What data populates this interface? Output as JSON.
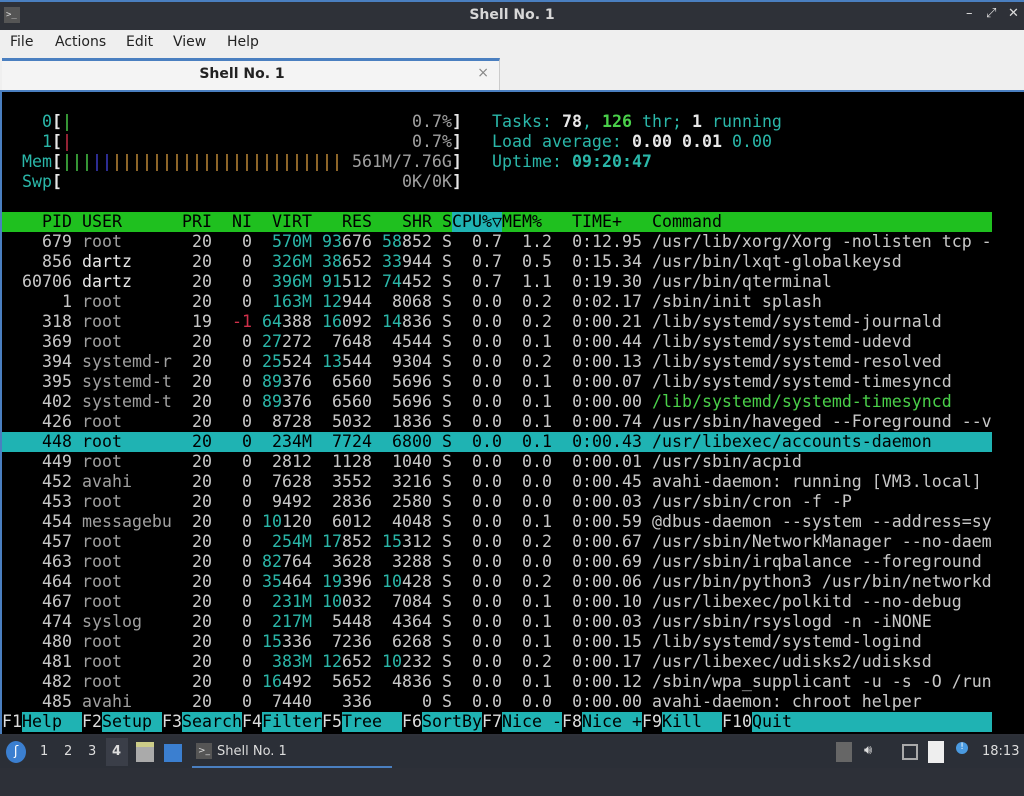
{
  "window": {
    "title": "Shell No. 1",
    "app_icon": "terminal-icon",
    "controls": [
      "minimize",
      "maximize",
      "close"
    ]
  },
  "menu": [
    "File",
    "Actions",
    "Edit",
    "View",
    "Help"
  ],
  "tab": {
    "label": "Shell No. 1",
    "close": "×"
  },
  "meters": {
    "cpu0": {
      "label": "0",
      "value": "0.7%"
    },
    "cpu1": {
      "label": "1",
      "value": "0.7%"
    },
    "mem": {
      "label": "Mem",
      "value": "561M/7.76G",
      "bars": {
        "used": 3,
        "buffers": 2,
        "cache": 23
      }
    },
    "swp": {
      "label": "Swp",
      "value": "0K/0K"
    }
  },
  "summary": {
    "tasks_label": "Tasks: ",
    "tasks": "78",
    "thr": "126",
    "thr_label": " thr; ",
    "running": "1",
    "running_label": " running",
    "load_label": "Load average: ",
    "load1": "0.00",
    "load5": "0.01",
    "load15": "0.00",
    "uptime_label": "Uptime: ",
    "uptime": "09:20:47"
  },
  "columns": [
    "PID",
    "USER",
    "PRI",
    "NI",
    "VIRT",
    "RES",
    "SHR",
    "S",
    "CPU%▽",
    "MEM%",
    "TIME+",
    "Command"
  ],
  "sort_column": "CPU%",
  "processes": [
    [
      "679",
      "root",
      "20",
      "0",
      "570M",
      "93676",
      "58852",
      "S",
      "0.7",
      "1.2",
      "0:12.95",
      "/usr/lib/xorg/Xorg -nolisten tcp -"
    ],
    [
      "856",
      "dartz",
      "20",
      "0",
      "326M",
      "38652",
      "33944",
      "S",
      "0.7",
      "0.5",
      "0:15.34",
      "/usr/bin/lxqt-globalkeysd"
    ],
    [
      "60706",
      "dartz",
      "20",
      "0",
      "396M",
      "91512",
      "74452",
      "S",
      "0.7",
      "1.1",
      "0:19.30",
      "/usr/bin/qterminal"
    ],
    [
      "1",
      "root",
      "20",
      "0",
      "163M",
      "12944",
      "8068",
      "S",
      "0.0",
      "0.2",
      "0:02.17",
      "/sbin/init splash"
    ],
    [
      "318",
      "root",
      "19",
      "-1",
      "64388",
      "16092",
      "14836",
      "S",
      "0.0",
      "0.2",
      "0:00.21",
      "/lib/systemd/systemd-journald"
    ],
    [
      "369",
      "root",
      "20",
      "0",
      "27272",
      "7648",
      "4544",
      "S",
      "0.0",
      "0.1",
      "0:00.44",
      "/lib/systemd/systemd-udevd"
    ],
    [
      "394",
      "systemd-r",
      "20",
      "0",
      "25524",
      "13544",
      "9304",
      "S",
      "0.0",
      "0.2",
      "0:00.13",
      "/lib/systemd/systemd-resolved"
    ],
    [
      "395",
      "systemd-t",
      "20",
      "0",
      "89376",
      "6560",
      "5696",
      "S",
      "0.0",
      "0.1",
      "0:00.07",
      "/lib/systemd/systemd-timesyncd"
    ],
    [
      "402",
      "systemd-t",
      "20",
      "0",
      "89376",
      "6560",
      "5696",
      "S",
      "0.0",
      "0.1",
      "0:00.00",
      "/lib/systemd/systemd-timesyncd"
    ],
    [
      "426",
      "root",
      "20",
      "0",
      "8728",
      "5032",
      "1836",
      "S",
      "0.0",
      "0.1",
      "0:00.74",
      "/usr/sbin/haveged --Foreground --v"
    ],
    [
      "448",
      "root",
      "20",
      "0",
      "234M",
      "7724",
      "6800",
      "S",
      "0.0",
      "0.1",
      "0:00.43",
      "/usr/libexec/accounts-daemon"
    ],
    [
      "449",
      "root",
      "20",
      "0",
      "2812",
      "1128",
      "1040",
      "S",
      "0.0",
      "0.0",
      "0:00.01",
      "/usr/sbin/acpid"
    ],
    [
      "452",
      "avahi",
      "20",
      "0",
      "7628",
      "3552",
      "3216",
      "S",
      "0.0",
      "0.0",
      "0:00.45",
      "avahi-daemon: running [VM3.local]"
    ],
    [
      "453",
      "root",
      "20",
      "0",
      "9492",
      "2836",
      "2580",
      "S",
      "0.0",
      "0.0",
      "0:00.03",
      "/usr/sbin/cron -f -P"
    ],
    [
      "454",
      "messagebu",
      "20",
      "0",
      "10120",
      "6012",
      "4048",
      "S",
      "0.0",
      "0.1",
      "0:00.59",
      "@dbus-daemon --system --address=sy"
    ],
    [
      "457",
      "root",
      "20",
      "0",
      "254M",
      "17852",
      "15312",
      "S",
      "0.0",
      "0.2",
      "0:00.67",
      "/usr/sbin/NetworkManager --no-daem"
    ],
    [
      "463",
      "root",
      "20",
      "0",
      "82764",
      "3628",
      "3288",
      "S",
      "0.0",
      "0.0",
      "0:00.69",
      "/usr/sbin/irqbalance --foreground"
    ],
    [
      "464",
      "root",
      "20",
      "0",
      "35464",
      "19396",
      "10428",
      "S",
      "0.0",
      "0.2",
      "0:00.06",
      "/usr/bin/python3 /usr/bin/networkd"
    ],
    [
      "467",
      "root",
      "20",
      "0",
      "231M",
      "10032",
      "7084",
      "S",
      "0.0",
      "0.1",
      "0:00.10",
      "/usr/libexec/polkitd --no-debug"
    ],
    [
      "474",
      "syslog",
      "20",
      "0",
      "217M",
      "5448",
      "4364",
      "S",
      "0.0",
      "0.1",
      "0:00.03",
      "/usr/sbin/rsyslogd -n -iNONE"
    ],
    [
      "480",
      "root",
      "20",
      "0",
      "15336",
      "7236",
      "6268",
      "S",
      "0.0",
      "0.1",
      "0:00.15",
      "/lib/systemd/systemd-logind"
    ],
    [
      "481",
      "root",
      "20",
      "0",
      "383M",
      "12652",
      "10232",
      "S",
      "0.0",
      "0.2",
      "0:00.17",
      "/usr/libexec/udisks2/udisksd"
    ],
    [
      "482",
      "root",
      "20",
      "0",
      "16492",
      "5652",
      "4836",
      "S",
      "0.0",
      "0.1",
      "0:00.12",
      "/sbin/wpa_supplicant -u -s -O /run"
    ],
    [
      "485",
      "avahi",
      "20",
      "0",
      "7440",
      "336",
      "0",
      "S",
      "0.0",
      "0.0",
      "0:00.00",
      "avahi-daemon: chroot helper"
    ]
  ],
  "selected_pid": "448",
  "thread_pids": [
    "402"
  ],
  "function_keys": [
    [
      "F1",
      "Help"
    ],
    [
      "F2",
      "Setup"
    ],
    [
      "F3",
      "Search"
    ],
    [
      "F4",
      "Filter"
    ],
    [
      "F5",
      "Tree"
    ],
    [
      "F6",
      "SortBy"
    ],
    [
      "F7",
      "Nice -"
    ],
    [
      "F8",
      "Nice +"
    ],
    [
      "F9",
      "Kill"
    ],
    [
      "F10",
      "Quit"
    ]
  ],
  "taskbar": {
    "workspaces": [
      "1",
      "2",
      "3",
      "4"
    ],
    "active_workspace": "4",
    "task": "Shell No. 1",
    "clock": "18:13"
  },
  "colors": {
    "header": "#1fc01f",
    "selection": "#1fb3b3",
    "accent": "#4a7fc0",
    "cyan": "#2ab7a9"
  }
}
